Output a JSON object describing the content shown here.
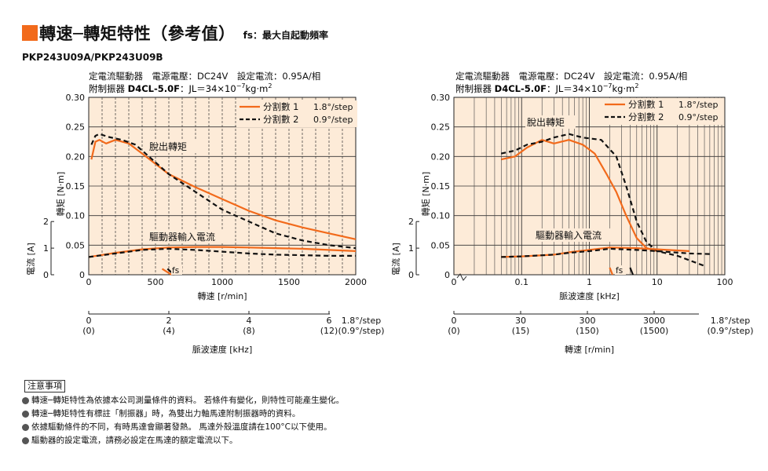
{
  "header": {
    "title": "轉速─轉矩特性（參考值）",
    "subtitle_note": "fs：最大自起動頻率",
    "model": "PKP243U09A/PKP243U09B"
  },
  "colors": {
    "accent": "#f26a1b",
    "panel_bg": "#fdebd8",
    "series1": "#f26a1b",
    "series2": "#111111"
  },
  "chart_data": [
    {
      "type": "line",
      "cond_line1": "定電流驅動器　電源電壓：DC24V　設定電流：0.95A/相",
      "cond_line2_prefix": "附制振器",
      "cond_line2_bold": "D4CL-5.0F",
      "cond_line2_suffix": "：JL＝34×10",
      "cond_line2_exp": "−7",
      "cond_line2_unit": "kg·m",
      "cond_line2_unit_exp": "2",
      "ylabel": "轉矩 [N·m]",
      "ylabel2": "電流 [A]",
      "xlabel": "轉速 [r/min]",
      "xlabel2": "脈波速度 [kHz]",
      "xscale": "linear",
      "xlim": [
        0,
        2000
      ],
      "ylim": [
        0,
        0.3
      ],
      "yticks": [
        "0",
        "0.05",
        "0.10",
        "0.15",
        "0.20",
        "0.25",
        "0.30"
      ],
      "yticks2": [
        "0",
        "1",
        "2"
      ],
      "xticks": [
        "0",
        "500",
        "1000",
        "1500",
        "2000"
      ],
      "xticks2_top": [
        "0",
        "2",
        "4",
        "6"
      ],
      "xticks2_bottom": [
        "(0)",
        "(4)",
        "(8)",
        "(12)"
      ],
      "xticks2_top_unit": "1.8°/step",
      "xticks2_bottom_unit": "(0.9°/step)",
      "legend": [
        {
          "label": "分割數 1",
          "step": "1.8°/step"
        },
        {
          "label": "分割數 2",
          "step": "0.9°/step"
        }
      ],
      "annotations": {
        "pullout": "脫出轉矩",
        "input_current": "驅動器輸入電流",
        "fs": "fs"
      },
      "series": [
        {
          "name": "分割數 1",
          "kind": "torque",
          "x": [
            20,
            50,
            80,
            130,
            200,
            300,
            400,
            600,
            800,
            1000,
            1200,
            1400,
            1600,
            1800,
            2000
          ],
          "y": [
            0.195,
            0.225,
            0.228,
            0.222,
            0.228,
            0.222,
            0.205,
            0.17,
            0.148,
            0.128,
            0.108,
            0.092,
            0.08,
            0.07,
            0.06
          ]
        },
        {
          "name": "分割數 2",
          "kind": "torque",
          "x": [
            20,
            50,
            80,
            150,
            250,
            350,
            450,
            600,
            800,
            1000,
            1200,
            1400,
            1600,
            1800,
            2000
          ],
          "y": [
            0.22,
            0.235,
            0.238,
            0.233,
            0.228,
            0.22,
            0.2,
            0.17,
            0.14,
            0.11,
            0.09,
            0.07,
            0.058,
            0.05,
            0.045
          ]
        },
        {
          "name": "分割數 1",
          "kind": "current",
          "x": [
            0,
            200,
            400,
            600,
            800,
            1000,
            1200,
            1400,
            1600,
            1800,
            2000
          ],
          "y": [
            0.03,
            0.037,
            0.043,
            0.046,
            0.047,
            0.047,
            0.046,
            0.045,
            0.044,
            0.042,
            0.04
          ]
        },
        {
          "name": "分割數 2",
          "kind": "current",
          "x": [
            0,
            200,
            400,
            600,
            800,
            1000,
            1200,
            1400,
            1600,
            1800,
            2000
          ],
          "y": [
            0.03,
            0.036,
            0.042,
            0.044,
            0.042,
            0.039,
            0.036,
            0.034,
            0.033,
            0.032,
            0.032
          ]
        }
      ],
      "fs_marks": [
        {
          "x": [
            550,
            620
          ],
          "y": [
            0.01,
            0.0
          ],
          "series": "分割數 1"
        },
        {
          "x": [
            590,
            640
          ],
          "y": [
            0.01,
            0.0
          ],
          "series": "分割數 2"
        }
      ]
    },
    {
      "type": "line",
      "cond_line1": "定電流驅動器　電源電壓：DC24V　設定電流：0.95A/相",
      "cond_line2_prefix": "附制振器",
      "cond_line2_bold": "D4CL-5.0F",
      "cond_line2_suffix": "：JL＝34×10",
      "cond_line2_exp": "−7",
      "cond_line2_unit": "kg·m",
      "cond_line2_unit_exp": "2",
      "ylabel": "轉矩 [N·m]",
      "ylabel2": "電流 [A]",
      "xlabel": "脈波速度 [kHz]",
      "xlabel2": "轉速 [r/min]",
      "xscale": "log",
      "xlim": [
        0.01,
        100
      ],
      "ylim": [
        0,
        0.3
      ],
      "yticks": [
        "0",
        "0.05",
        "0.10",
        "0.15",
        "0.20",
        "0.25",
        "0.30"
      ],
      "yticks2": [
        "0",
        "1",
        "2"
      ],
      "xticks": [
        "0",
        "0.1",
        "1",
        "10",
        "100"
      ],
      "xticks2_top": [
        "0",
        "30",
        "300",
        "3000"
      ],
      "xticks2_bottom": [
        "(0)",
        "(15)",
        "(150)",
        "(1500)"
      ],
      "xticks2_top_unit": "1.8°/step",
      "xticks2_bottom_unit": "(0.9°/step)",
      "legend": [
        {
          "label": "分割數 1",
          "step": "1.8°/step"
        },
        {
          "label": "分割數 2",
          "step": "0.9°/step"
        }
      ],
      "annotations": {
        "pullout": "脫出轉矩",
        "input_current": "驅動器輸入電流",
        "fs": "fs"
      },
      "series": [
        {
          "name": "分割數 1",
          "kind": "torque",
          "x": [
            0.05,
            0.08,
            0.12,
            0.2,
            0.3,
            0.5,
            0.8,
            1.2,
            1.8,
            2.5,
            3.5,
            5,
            7,
            10
          ],
          "y": [
            0.195,
            0.2,
            0.215,
            0.228,
            0.222,
            0.228,
            0.22,
            0.205,
            0.17,
            0.14,
            0.1,
            0.062,
            0.045,
            0.04
          ]
        },
        {
          "name": "分割數 2",
          "kind": "torque",
          "x": [
            0.05,
            0.08,
            0.12,
            0.2,
            0.3,
            0.5,
            0.8,
            1.5,
            2.5,
            3.5,
            5,
            7,
            10,
            20,
            50
          ],
          "y": [
            0.205,
            0.21,
            0.22,
            0.225,
            0.232,
            0.238,
            0.232,
            0.228,
            0.2,
            0.15,
            0.09,
            0.055,
            0.04,
            0.032,
            0.015
          ]
        },
        {
          "name": "分割數 1",
          "kind": "current",
          "x": [
            0.05,
            0.1,
            0.3,
            0.5,
            1,
            2,
            5,
            10,
            30
          ],
          "y": [
            0.03,
            0.031,
            0.034,
            0.038,
            0.042,
            0.046,
            0.045,
            0.043,
            0.04
          ]
        },
        {
          "name": "分割數 2",
          "kind": "current",
          "x": [
            0.05,
            0.1,
            0.3,
            0.5,
            1,
            2,
            5,
            10,
            30,
            60
          ],
          "y": [
            0.03,
            0.031,
            0.034,
            0.037,
            0.04,
            0.044,
            0.042,
            0.04,
            0.036,
            0.035
          ]
        }
      ],
      "fs_marks": [
        {
          "x": [
            2.0,
            2.2
          ],
          "y": [
            0.012,
            0.0
          ],
          "series": "分割數 1"
        },
        {
          "x": [
            4.0,
            4.4
          ],
          "y": [
            0.012,
            0.0
          ],
          "series": "分割數 2"
        }
      ]
    }
  ],
  "notes": {
    "heading": "注意事項",
    "items": [
      "轉速─轉矩特性為依據本公司測量條件的資料。 若條件有變化，則特性可能產生變化。",
      "轉速─轉矩特性有標註「制振器」時，為雙出力軸馬達附制振器時的資料。",
      "依據驅動條件的不同，有時馬達會顯著發熱。 馬達外殼溫度請在100°C以下使用。",
      "驅動器的設定電流，請務必設定在馬達的額定電流以下。"
    ]
  }
}
